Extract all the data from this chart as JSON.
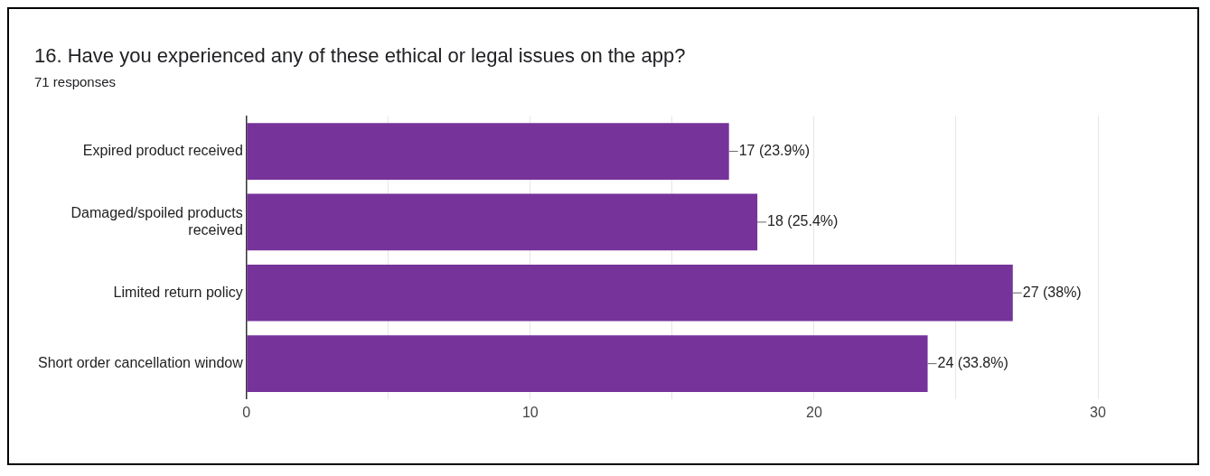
{
  "chart_data": {
    "type": "bar",
    "orientation": "horizontal",
    "title": "16. Have you experienced any of these ethical or legal issues on the app?",
    "subtitle": "71 responses",
    "categories": [
      "Expired product received",
      "Damaged/spoiled products received",
      "Limited return policy",
      "Short order cancellation window"
    ],
    "values": [
      17,
      18,
      27,
      24
    ],
    "color": "#76339a",
    "value_labels": [
      "17 (23.9%)",
      "18 (25.4%)",
      "27 (38%)",
      "24 (33.8%)"
    ],
    "xlim": [
      0,
      30
    ],
    "xticks": [
      0,
      {
        "value": 5,
        "label": null
      },
      10,
      {
        "value": 15,
        "label": null
      },
      20,
      {
        "value": 25,
        "label": null
      },
      30
    ],
    "grid": "x",
    "legend": false
  }
}
